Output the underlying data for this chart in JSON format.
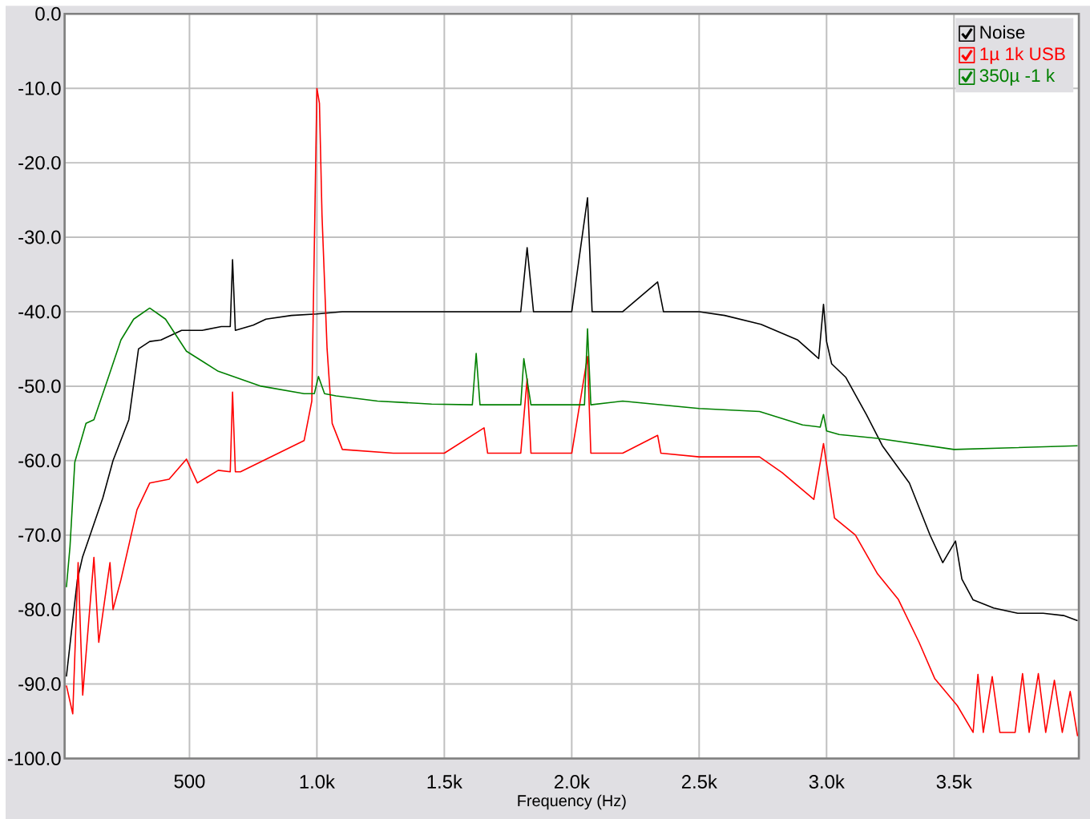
{
  "chart_data": {
    "type": "line",
    "xlabel": "Frequency (Hz)",
    "xlim": [
      10,
      3990
    ],
    "ylim": [
      -100,
      0
    ],
    "xticks": [
      500,
      {
        "value": 1000,
        "label": "1.0k"
      },
      {
        "value": 1500,
        "label": "1.5k"
      },
      {
        "value": 2000,
        "label": "2.0k"
      },
      {
        "value": 2500,
        "label": "2.5k"
      },
      {
        "value": 3000,
        "label": "3.0k"
      },
      {
        "value": 3500,
        "label": "3.5k"
      }
    ],
    "yticks": [
      {
        "value": 0,
        "label": "0.0"
      },
      {
        "value": -10,
        "label": "-10.0"
      },
      {
        "value": -20,
        "label": "-20.0"
      },
      {
        "value": -30,
        "label": "-30.0"
      },
      {
        "value": -40,
        "label": "-40.0"
      },
      {
        "value": -50,
        "label": "-50.0"
      },
      {
        "value": -60,
        "label": "-60.0"
      },
      {
        "value": -70,
        "label": "-70.0"
      },
      {
        "value": -80,
        "label": "-80.0"
      },
      {
        "value": -90,
        "label": "-90.0"
      },
      {
        "value": -100,
        "label": "-100.0"
      }
    ],
    "grid": true,
    "legend": "top right",
    "marker": "none",
    "line_style": "solid",
    "series": [
      {
        "name": "Noise",
        "color": "#000000",
        "x": [
          17,
          40,
          60,
          80,
          100,
          130,
          160,
          200,
          262,
          300,
          344,
          388,
          469,
          550,
          625,
          660,
          669,
          680,
          750,
          800,
          900,
          1000,
          1100,
          1200,
          1400,
          1600,
          1800,
          1825,
          1850,
          2000,
          2062,
          2080,
          2200,
          2337,
          2360,
          2500,
          2600,
          2743,
          2887,
          2969,
          2988,
          3000,
          3020,
          3075,
          3156,
          3219,
          3325,
          3406,
          3456,
          3506,
          3531,
          3575,
          3656,
          3750,
          3850,
          3930,
          3985
        ],
        "values": [
          -89,
          -82,
          -76,
          -73,
          -71,
          -68,
          -65,
          -60,
          -54.5,
          -45,
          -44,
          -43.8,
          -42.5,
          -42.5,
          -42,
          -42,
          -33,
          -42.5,
          -41.8,
          -41,
          -40.5,
          -40.3,
          -40,
          -40,
          -40,
          -40,
          -40,
          -31.4,
          -40,
          -40,
          -24.7,
          -40,
          -40,
          -36,
          -40,
          -40,
          -40.5,
          -41.7,
          -43.8,
          -46.3,
          -39,
          -44,
          -47,
          -48.8,
          -53.8,
          -58,
          -63,
          -70,
          -73.7,
          -70.8,
          -75.9,
          -78.7,
          -79.8,
          -80.5,
          -80.5,
          -80.8,
          -81.5
        ]
      },
      {
        "name": "1µ 1k USB",
        "color": "#ff0000",
        "x": [
          17,
          42,
          63,
          81,
          125,
          144,
          188,
          200,
          231,
          294,
          344,
          420,
          488,
          531,
          613,
          660,
          669,
          680,
          700,
          825,
          950,
          980,
          1000,
          1010,
          1020,
          1040,
          1060,
          1100,
          1300,
          1500,
          1656,
          1670,
          1800,
          1825,
          1840,
          2000,
          2062,
          2075,
          2200,
          2337,
          2350,
          2500,
          2737,
          2825,
          2950,
          2988,
          3031,
          3113,
          3200,
          3281,
          3363,
          3425,
          3513,
          3575,
          3594,
          3615,
          3650,
          3680,
          3740,
          3769,
          3795,
          3831,
          3860,
          3894,
          3925,
          3956,
          3985
        ],
        "values": [
          -90.2,
          -94,
          -73.7,
          -91.5,
          -73,
          -84.4,
          -73.7,
          -80,
          -76,
          -66.6,
          -63,
          -62.5,
          -59.8,
          -63,
          -61.3,
          -61.5,
          -50.8,
          -61.5,
          -61.5,
          -59.4,
          -57.3,
          -52,
          -10,
          -12,
          -27,
          -45,
          -55,
          -58.5,
          -59,
          -59,
          -55.6,
          -59,
          -59,
          -49,
          -59,
          -59,
          -46,
          -59,
          -59,
          -56.6,
          -59,
          -59.5,
          -59.5,
          -61.6,
          -65.2,
          -57.7,
          -67.7,
          -70,
          -75.2,
          -78.6,
          -84.4,
          -89.3,
          -92.9,
          -96.5,
          -88.7,
          -96.5,
          -89,
          -96.5,
          -96.5,
          -88.6,
          -96.5,
          -88.6,
          -96.5,
          -89.5,
          -96.5,
          -91,
          -97
        ]
      },
      {
        "name": "350µ -1 k",
        "color": "#008000",
        "x": [
          17,
          31,
          50,
          94,
          125,
          175,
          231,
          281,
          344,
          406,
          488,
          613,
          781,
          950,
          990,
          1006,
          1030,
          1075,
          1238,
          1450,
          1610,
          1625,
          1640,
          1800,
          1812,
          1840,
          2050,
          2062,
          2075,
          2200,
          2500,
          2737,
          2906,
          2975,
          2988,
          3000,
          3050,
          3200,
          3500,
          3700,
          3985
        ],
        "values": [
          -77,
          -71.6,
          -60.2,
          -55,
          -54.5,
          -49.5,
          -43.8,
          -41,
          -39.5,
          -41,
          -45.3,
          -48,
          -50,
          -51,
          -51,
          -48.7,
          -51,
          -51.3,
          -52,
          -52.4,
          -52.5,
          -45.6,
          -52.5,
          -52.5,
          -46.3,
          -52.5,
          -52.5,
          -42.3,
          -52.5,
          -52,
          -53,
          -53.4,
          -55.2,
          -55.5,
          -53.8,
          -56,
          -56.5,
          -57,
          -58.5,
          -58.3,
          -58
        ]
      }
    ]
  }
}
